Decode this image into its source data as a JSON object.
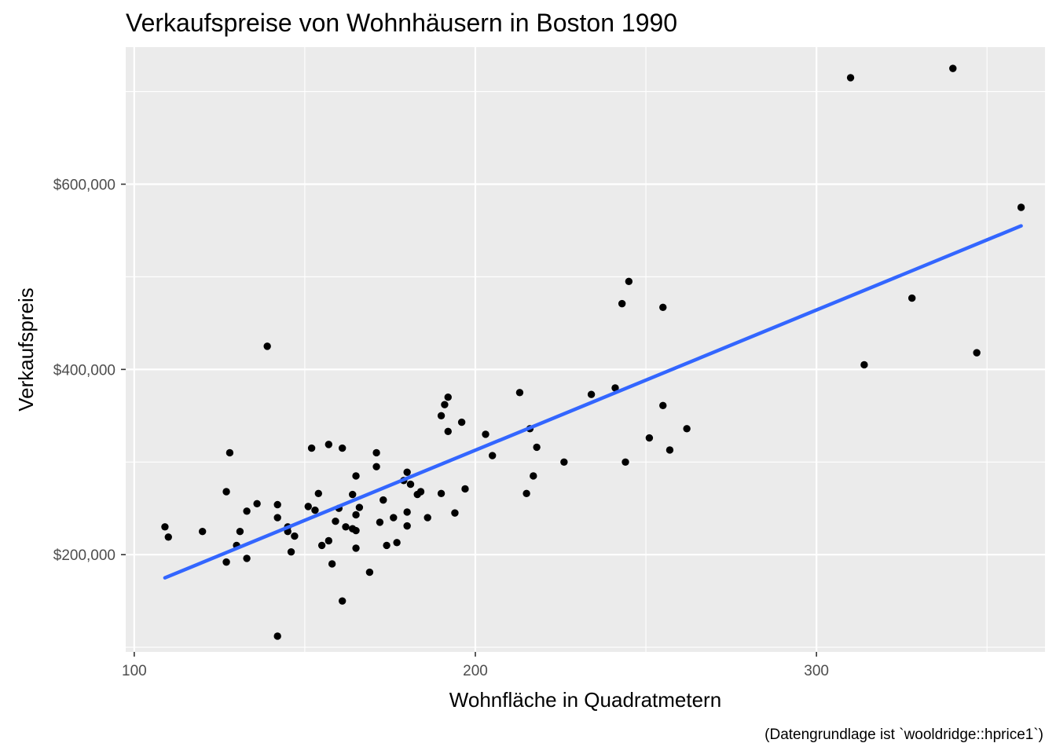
{
  "chart_data": {
    "type": "scatter",
    "title": "Verkaufspreise von Wohnhäusern in Boston 1990",
    "xlabel": "Wohnfläche in Quadratmetern",
    "ylabel": "Verkaufspreis",
    "caption": "(Datengrundlage ist `wooldridge::hprice1`)",
    "xlim": [
      97.5,
      367
    ],
    "ylim": [
      95000,
      748000
    ],
    "x_ticks": [
      100,
      200,
      300
    ],
    "x_tick_labels": [
      "100",
      "200",
      "300"
    ],
    "y_ticks": [
      200000,
      400000,
      600000
    ],
    "y_tick_labels": [
      "$200,000",
      "$400,000",
      "$600,000"
    ],
    "grid": true,
    "colors": {
      "panel": "#ebebeb",
      "point": "#000000",
      "fit_line": "#3366ff"
    },
    "points": [
      [
        109,
        230000
      ],
      [
        110,
        219000
      ],
      [
        120,
        225000
      ],
      [
        127,
        192000
      ],
      [
        127,
        268000
      ],
      [
        128,
        310000
      ],
      [
        130,
        210000
      ],
      [
        131,
        225000
      ],
      [
        133,
        247000
      ],
      [
        133,
        196000
      ],
      [
        136,
        255000
      ],
      [
        139,
        425000
      ],
      [
        142,
        254000
      ],
      [
        142,
        240000
      ],
      [
        142,
        112000
      ],
      [
        145,
        230000
      ],
      [
        145,
        225000
      ],
      [
        146,
        203000
      ],
      [
        147,
        220000
      ],
      [
        151,
        252000
      ],
      [
        152,
        315000
      ],
      [
        153,
        248000
      ],
      [
        154,
        266000
      ],
      [
        155,
        210000
      ],
      [
        157,
        215000
      ],
      [
        157,
        319000
      ],
      [
        158,
        190000
      ],
      [
        159,
        236000
      ],
      [
        160,
        250000
      ],
      [
        161,
        315000
      ],
      [
        161,
        150000
      ],
      [
        162,
        230000
      ],
      [
        164,
        265000
      ],
      [
        164,
        228000
      ],
      [
        165,
        226000
      ],
      [
        165,
        207000
      ],
      [
        165,
        243000
      ],
      [
        165,
        285000
      ],
      [
        166,
        251000
      ],
      [
        169,
        181000
      ],
      [
        171,
        310000
      ],
      [
        171,
        295000
      ],
      [
        172,
        235000
      ],
      [
        173,
        259000
      ],
      [
        174,
        210000
      ],
      [
        176,
        240000
      ],
      [
        177,
        213000
      ],
      [
        179,
        280000
      ],
      [
        180,
        289000
      ],
      [
        180,
        246000
      ],
      [
        180,
        231000
      ],
      [
        181,
        276000
      ],
      [
        183,
        265000
      ],
      [
        184,
        268000
      ],
      [
        186,
        240000
      ],
      [
        190,
        350000
      ],
      [
        190,
        266000
      ],
      [
        191,
        362000
      ],
      [
        192,
        333000
      ],
      [
        192,
        370000
      ],
      [
        194,
        245000
      ],
      [
        196,
        343000
      ],
      [
        197,
        271000
      ],
      [
        203,
        330000
      ],
      [
        205,
        307000
      ],
      [
        213,
        375000
      ],
      [
        215,
        266000
      ],
      [
        216,
        336000
      ],
      [
        217,
        285000
      ],
      [
        218,
        316000
      ],
      [
        226,
        300000
      ],
      [
        234,
        373000
      ],
      [
        241,
        380000
      ],
      [
        243,
        471000
      ],
      [
        244,
        300000
      ],
      [
        245,
        495000
      ],
      [
        251,
        326000
      ],
      [
        255,
        361000
      ],
      [
        255,
        467000
      ],
      [
        257,
        313000
      ],
      [
        262,
        336000
      ],
      [
        310,
        715000
      ],
      [
        314,
        405000
      ],
      [
        328,
        477000
      ],
      [
        340,
        725000
      ],
      [
        347,
        418000
      ],
      [
        360,
        575000
      ]
    ],
    "fit_line": {
      "x": [
        109,
        360
      ],
      "y": [
        175000,
        555000
      ]
    }
  }
}
